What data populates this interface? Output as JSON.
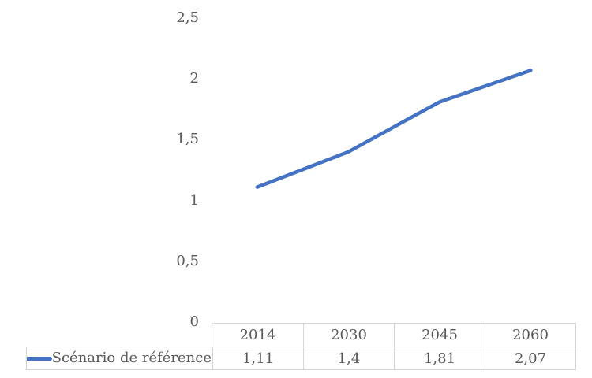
{
  "chart_data": {
    "type": "line",
    "title": "",
    "xlabel": "",
    "ylabel": "",
    "categories": [
      "2014",
      "2030",
      "2045",
      "2060"
    ],
    "series": [
      {
        "name": "Scénario de référence",
        "values": [
          1.11,
          1.4,
          1.81,
          2.07
        ],
        "values_display": [
          "1,11",
          "1,4",
          "1,81",
          "2,07"
        ],
        "color": "#4472C4"
      }
    ],
    "ylim": [
      0,
      2.5
    ],
    "y_tick_labels": [
      "2,5",
      "2",
      "1,5",
      "1",
      "0,5",
      "0"
    ],
    "y_tick_values": [
      2.5,
      2,
      1.5,
      1,
      0.5,
      0
    ],
    "grid": false,
    "axis_lines": false,
    "legend_position": "data-table-left",
    "data_table_shown": true,
    "text_color": "#595959",
    "table_border_color": "#d6d6d6",
    "background_color": "#ffffff"
  }
}
